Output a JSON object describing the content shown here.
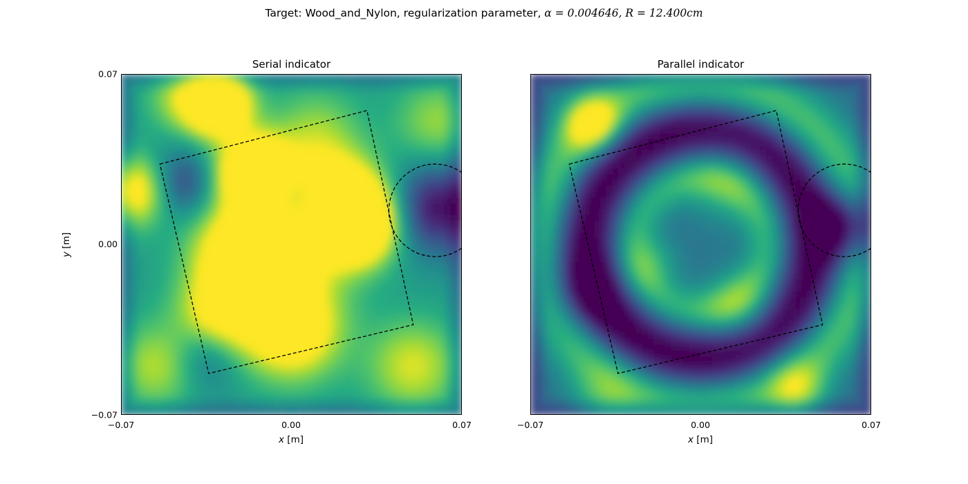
{
  "figure": {
    "suptitle_prefix": "Target: Wood_and_Nylon, regularization parameter, ",
    "suptitle_math": "α = 0.004646, R = 12.400cm"
  },
  "chart_data": [
    {
      "type": "heatmap",
      "title": "Serial indicator",
      "xlabel_var": "x",
      "xlabel_unit": "[m]",
      "ylabel_var": "y",
      "ylabel_unit": "[m]",
      "xlim": [
        -0.07,
        0.07
      ],
      "ylim": [
        -0.07,
        0.07
      ],
      "xticks": [
        "−0.07",
        "0.00",
        "0.07"
      ],
      "yticks": [
        "0.07",
        "0.00",
        "−0.07"
      ],
      "colormap": "viridis",
      "overlays": {
        "square_vertices": [
          [
            -0.054,
            0.033
          ],
          [
            0.031,
            0.055
          ],
          [
            0.05,
            -0.033
          ],
          [
            -0.034,
            -0.053
          ]
        ],
        "circle": {
          "cx": 0.059,
          "cy": 0.014,
          "r": 0.019
        },
        "style": "dashed black"
      },
      "blobs": [
        {
          "x": -0.03,
          "y": 0.058,
          "v": 1.0,
          "s": 0.009
        },
        {
          "x": -0.015,
          "y": 0.03,
          "v": 1.0,
          "s": 0.01
        },
        {
          "x": 0.027,
          "y": 0.008,
          "v": 1.0,
          "s": 0.011
        },
        {
          "x": 0.02,
          "y": 0.02,
          "v": 0.6,
          "s": 0.012
        },
        {
          "x": -0.065,
          "y": 0.022,
          "v": 0.6,
          "s": 0.01
        },
        {
          "x": -0.02,
          "y": -0.005,
          "v": 0.6,
          "s": 0.014
        },
        {
          "x": -0.005,
          "y": 0.0,
          "v": 0.5,
          "s": 0.018
        },
        {
          "x": 0.0,
          "y": -0.035,
          "v": 0.7,
          "s": 0.014
        },
        {
          "x": -0.03,
          "y": -0.03,
          "v": 0.5,
          "s": 0.012
        },
        {
          "x": 0.05,
          "y": -0.05,
          "v": 0.4,
          "s": 0.013
        },
        {
          "x": -0.045,
          "y": 0.06,
          "v": 0.3,
          "s": 0.01
        },
        {
          "x": 0.06,
          "y": 0.05,
          "v": 0.3,
          "s": 0.012
        },
        {
          "x": -0.055,
          "y": -0.05,
          "v": 0.35,
          "s": 0.012
        },
        {
          "x": 0.01,
          "y": 0.045,
          "v": 0.3,
          "s": 0.013
        }
      ],
      "dark_spots": [
        {
          "x": 0.06,
          "y": 0.015,
          "v": -0.5,
          "s": 0.013
        },
        {
          "x": -0.045,
          "y": 0.025,
          "v": -0.35,
          "s": 0.01
        },
        {
          "x": 0.003,
          "y": 0.018,
          "v": -0.3,
          "s": 0.008
        },
        {
          "x": -0.035,
          "y": -0.045,
          "v": -0.3,
          "s": 0.01
        }
      ],
      "base": 0.55
    },
    {
      "type": "heatmap",
      "title": "Parallel indicator",
      "xlabel_var": "x",
      "xlabel_unit": "[m]",
      "xlim": [
        -0.07,
        0.07
      ],
      "ylim": [
        -0.07,
        0.07
      ],
      "xticks": [
        "−0.07",
        "0.00",
        "0.07"
      ],
      "colormap": "viridis",
      "overlays": {
        "square_vertices": [
          [
            -0.054,
            0.033
          ],
          [
            0.031,
            0.055
          ],
          [
            0.05,
            -0.033
          ],
          [
            -0.034,
            -0.053
          ]
        ],
        "circle": {
          "cx": 0.059,
          "cy": 0.014,
          "r": 0.019
        },
        "style": "dashed black"
      },
      "ring_outer": {
        "r": 0.066,
        "v": 0.35,
        "w": 0.008
      },
      "ring_inner": {
        "r": 0.027,
        "v": 0.28,
        "w": 0.006
      },
      "ring_dark": {
        "r": 0.047,
        "v": -0.4,
        "w": 0.009
      },
      "blobs": [
        {
          "x": -0.045,
          "y": 0.05,
          "v": 0.55,
          "s": 0.008
        },
        {
          "x": 0.01,
          "y": 0.025,
          "v": 0.2,
          "s": 0.012
        },
        {
          "x": 0.015,
          "y": -0.025,
          "v": 0.25,
          "s": 0.01
        },
        {
          "x": -0.02,
          "y": -0.008,
          "v": 0.2,
          "s": 0.008
        },
        {
          "x": 0.04,
          "y": -0.06,
          "v": 0.35,
          "s": 0.008
        },
        {
          "x": -0.04,
          "y": -0.065,
          "v": 0.2,
          "s": 0.01
        }
      ],
      "dark_spots": [
        {
          "x": 0.061,
          "y": 0.008,
          "v": -0.45,
          "s": 0.01
        },
        {
          "x": -0.05,
          "y": -0.02,
          "v": -0.2,
          "s": 0.012
        }
      ],
      "base": 0.38
    }
  ]
}
